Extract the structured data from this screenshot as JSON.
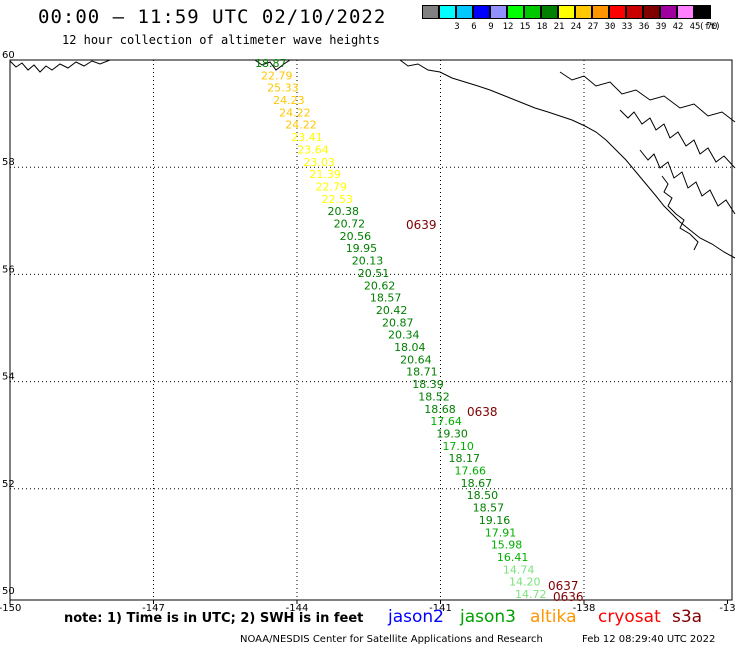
{
  "title": "00:00 – 11:59 UTC 02/10/2022",
  "subtitle": "12 hour collection of altimeter wave heights",
  "legend": {
    "unit": "(ft)",
    "items": [
      {
        "color": "#808080",
        "label": ""
      },
      {
        "color": "#00ffff",
        "label": "3"
      },
      {
        "color": "#00c8ff",
        "label": "6"
      },
      {
        "color": "#0000ff",
        "label": "9"
      },
      {
        "color": "#9090ff",
        "label": "12"
      },
      {
        "color": "#00ff00",
        "label": "15"
      },
      {
        "color": "#00c800",
        "label": "18"
      },
      {
        "color": "#008000",
        "label": "21"
      },
      {
        "color": "#ffff00",
        "label": "24"
      },
      {
        "color": "#ffc800",
        "label": "27"
      },
      {
        "color": "#ff9600",
        "label": "30"
      },
      {
        "color": "#ff0000",
        "label": "33"
      },
      {
        "color": "#c80000",
        "label": "36"
      },
      {
        "color": "#800000",
        "label": "39"
      },
      {
        "color": "#a000a0",
        "label": "42"
      },
      {
        "color": "#ff80ff",
        "label": "45"
      },
      {
        "color": "#000000",
        "label": "70"
      }
    ]
  },
  "axes": {
    "lon_ticks": [
      "-150",
      "-147",
      "-144",
      "-141",
      "-138",
      "-13"
    ],
    "lat_ticks": [
      "60",
      "58",
      "56",
      "54",
      "52",
      "50"
    ]
  },
  "track": [
    {
      "v": "18.87",
      "c": "#008000"
    },
    {
      "v": "22.79",
      "c": "#ffc800"
    },
    {
      "v": "25.33",
      "c": "#ffc800"
    },
    {
      "v": "24.23",
      "c": "#ffc800"
    },
    {
      "v": "24.22",
      "c": "#ffc800"
    },
    {
      "v": "24.22",
      "c": "#ffc800"
    },
    {
      "v": "23.41",
      "c": "#ffff00"
    },
    {
      "v": "23.64",
      "c": "#ffff00"
    },
    {
      "v": "23.03",
      "c": "#ffff00"
    },
    {
      "v": "21.39",
      "c": "#ffff00"
    },
    {
      "v": "22.79",
      "c": "#ffff00"
    },
    {
      "v": "22.53",
      "c": "#ffff00"
    },
    {
      "v": "20.38",
      "c": "#008000"
    },
    {
      "v": "20.72",
      "c": "#008000"
    },
    {
      "v": "20.56",
      "c": "#008000"
    },
    {
      "v": "19.95",
      "c": "#008000"
    },
    {
      "v": "20.13",
      "c": "#008000"
    },
    {
      "v": "20.51",
      "c": "#008000"
    },
    {
      "v": "20.62",
      "c": "#008000"
    },
    {
      "v": "18.57",
      "c": "#008000"
    },
    {
      "v": "20.42",
      "c": "#008000"
    },
    {
      "v": "20.87",
      "c": "#008000"
    },
    {
      "v": "20.34",
      "c": "#008000"
    },
    {
      "v": "18.04",
      "c": "#008000"
    },
    {
      "v": "20.64",
      "c": "#008000"
    },
    {
      "v": "18.71",
      "c": "#008000"
    },
    {
      "v": "18.39",
      "c": "#008000"
    },
    {
      "v": "18.52",
      "c": "#008000"
    },
    {
      "v": "18.68",
      "c": "#008000"
    },
    {
      "v": "17.64",
      "c": "#00b000"
    },
    {
      "v": "19.30",
      "c": "#008000"
    },
    {
      "v": "17.10",
      "c": "#00b000"
    },
    {
      "v": "18.17",
      "c": "#008000"
    },
    {
      "v": "17.66",
      "c": "#00b000"
    },
    {
      "v": "18.67",
      "c": "#008000"
    },
    {
      "v": "18.50",
      "c": "#008000"
    },
    {
      "v": "18.57",
      "c": "#008000"
    },
    {
      "v": "19.16",
      "c": "#008000"
    },
    {
      "v": "17.91",
      "c": "#00b000"
    },
    {
      "v": "15.98",
      "c": "#00b000"
    },
    {
      "v": "16.41",
      "c": "#00b000"
    },
    {
      "v": "14.74",
      "c": "#7ce27c"
    },
    {
      "v": "14.20",
      "c": "#7ce27c"
    },
    {
      "v": "14.72",
      "c": "#7ce27c"
    }
  ],
  "time_labels": [
    "0639",
    "0638",
    "0637",
    "0636"
  ],
  "note": "note: 1) Time is in UTC; 2) SWH is in feet",
  "satellites": [
    {
      "name": "jason2",
      "color": "#0000ff"
    },
    {
      "name": "jason3",
      "color": "#00a000"
    },
    {
      "name": "altika",
      "color": "#ff9600"
    },
    {
      "name": "cryosat",
      "color": "#ff0000"
    },
    {
      "name": "s3a",
      "color": "#800000"
    }
  ],
  "credit": "NOAA/NESDIS Center for Satellite Applications and Research",
  "timestamp": "Feb 12 08:29:40 UTC 2022"
}
